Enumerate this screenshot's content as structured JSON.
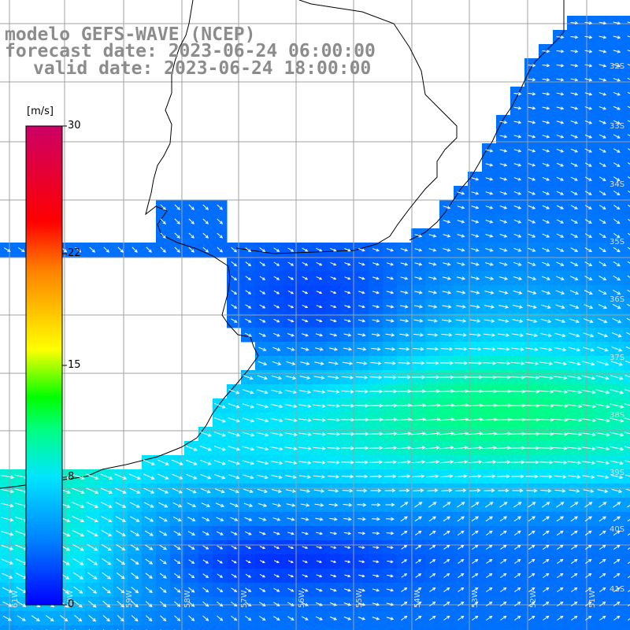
{
  "title": {
    "model": "modelo GEFS-WAVE (NCEP)",
    "forecast": "forecast date: 2023-06-24 06:00:00",
    "valid": "valid date: 2023-06-24 18:00:00"
  },
  "colorbar": {
    "unit": "[m/s]",
    "ticks": [
      {
        "value": 30,
        "label": "30"
      },
      {
        "value": 22,
        "label": "22"
      },
      {
        "value": 15,
        "label": "15"
      },
      {
        "value": 8,
        "label": "8"
      },
      {
        "value": 0,
        "label": "0"
      }
    ],
    "min": 0,
    "max": 30,
    "stops": [
      "#0000ff",
      "#0080ff",
      "#00e5ff",
      "#00ff80",
      "#00ff00",
      "#ffff00",
      "#ff8000",
      "#ff0000",
      "#cc0066"
    ]
  },
  "lat_labels": [
    "32S",
    "33S",
    "34S",
    "35S",
    "36S",
    "37S",
    "38S",
    "39S",
    "40S",
    "41S"
  ],
  "lon_labels": [
    "61W",
    "60W",
    "59W",
    "58W",
    "57W",
    "56W",
    "55W",
    "54W",
    "53W",
    "52W",
    "51W"
  ],
  "colors": {
    "land": "#ffffff",
    "grid": "#a0a0a0",
    "coast": "#000000",
    "arrow": "#ffffff",
    "title": "#8c8c8c"
  }
}
